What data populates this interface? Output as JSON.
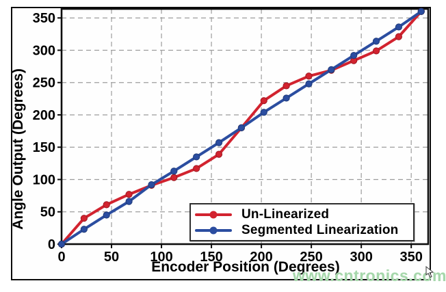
{
  "axes": {
    "xlabel": "Encoder Position (Degrees)",
    "ylabel": "Angle Output (Degrees)"
  },
  "legend": {
    "items": [
      {
        "label": "Un-Linearized",
        "color": "#d2232f"
      },
      {
        "label": "Segmented Linearization",
        "color": "#2b4da0"
      }
    ]
  },
  "watermark": {
    "text": "www.cntronics.com",
    "color": "#a6d7ab"
  },
  "colors": {
    "red_series": "#d2232f",
    "red_marker_edge": "#9e1822",
    "blue_series": "#2b4da0",
    "blue_marker_edge": "#1e3a78",
    "grid": "#9c9c9c",
    "frame": "#0d0d0d",
    "text": "#000000"
  },
  "chart_data": {
    "type": "line",
    "title": "",
    "xlabel": "Encoder Position (Degrees)",
    "ylabel": "Angle Output (Degrees)",
    "x": [
      0,
      22.5,
      45,
      67.5,
      90,
      112.5,
      135,
      157.5,
      180,
      202.5,
      225,
      247.5,
      270,
      292.5,
      315,
      337.5,
      360
    ],
    "series": [
      {
        "name": "Un-Linearized",
        "color": "#d2232f",
        "marker": "circle",
        "values": [
          0,
          40,
          61,
          77,
          91,
          103,
          117,
          139,
          180,
          222,
          245,
          260,
          269,
          284,
          299,
          321,
          360
        ]
      },
      {
        "name": "Segmented Linearization",
        "color": "#2b4da0",
        "marker": "circle",
        "values": [
          0,
          23,
          45,
          66,
          92,
          113,
          135,
          157,
          180,
          204,
          226,
          248,
          270,
          292,
          314,
          336,
          360
        ]
      }
    ],
    "x_ticks": [
      0,
      50,
      100,
      150,
      200,
      250,
      300,
      350
    ],
    "y_ticks": [
      0,
      50,
      100,
      150,
      200,
      250,
      300,
      350
    ],
    "xlim": [
      0,
      367
    ],
    "ylim": [
      0,
      364
    ],
    "grid": true,
    "grid_style": "dashed",
    "legend_position": "lower-right"
  }
}
